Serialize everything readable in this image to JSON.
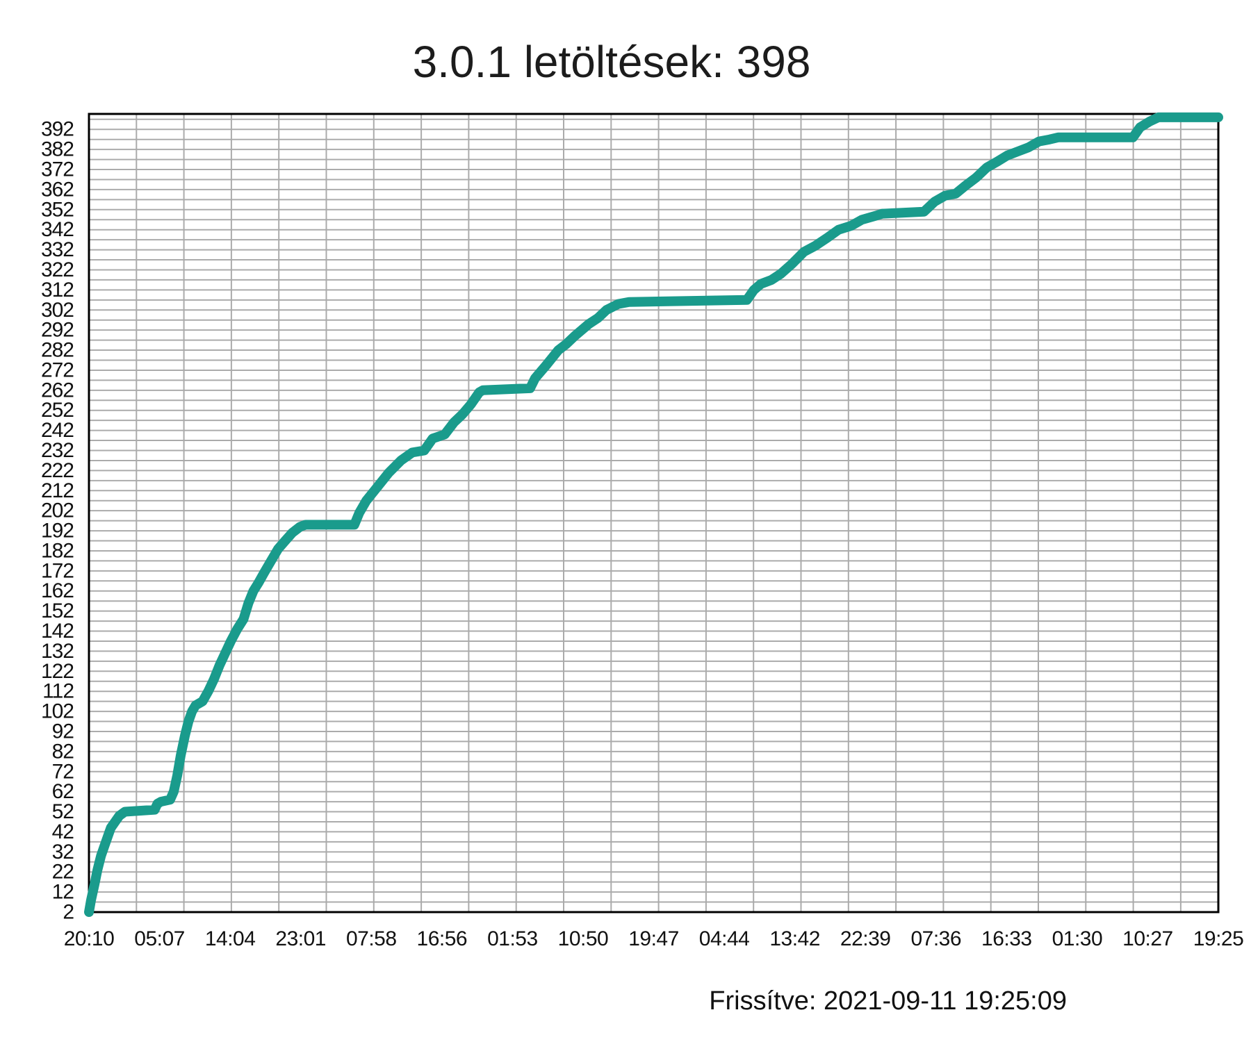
{
  "title": {
    "text": "3.0.1 letöltések: 398"
  },
  "footer": {
    "updated": "Frissítve: 2021-09-11 19:25:09"
  },
  "chart_data": {
    "type": "line",
    "title": "3.0.1 letöltések: 398",
    "series_name": "3.0.1 letöltések",
    "final_value": 398,
    "line_color": "#1a9b8c",
    "grid_color": "#ababab",
    "axis_color": "#000000",
    "background_color": "#ffffff",
    "grid_on": true,
    "legend": "none",
    "xlabel": "",
    "ylabel": "",
    "xlim": [
      0,
      16
    ],
    "ylim": [
      2,
      399.7
    ],
    "y_tick_min": 2,
    "y_tick_max": 392,
    "y_tick_step": 10,
    "y_minor_gridline_step": 5,
    "x_tick_labels": [
      "20:10",
      "05:07",
      "14:04",
      "23:01",
      "07:58",
      "16:56",
      "01:53",
      "10:50",
      "19:47",
      "04:44",
      "13:42",
      "22:39",
      "07:36",
      "16:33",
      "01:30",
      "10:27",
      "19:25"
    ],
    "points": [
      [
        0,
        2
      ],
      [
        0.03,
        8
      ],
      [
        0.08,
        16
      ],
      [
        0.12,
        23
      ],
      [
        0.17,
        30
      ],
      [
        0.22,
        35
      ],
      [
        0.27,
        40
      ],
      [
        0.31,
        44
      ],
      [
        0.37,
        47
      ],
      [
        0.43,
        50
      ],
      [
        0.51,
        52
      ],
      [
        0.93,
        53
      ],
      [
        0.97,
        56
      ],
      [
        1.02,
        57
      ],
      [
        1.15,
        58
      ],
      [
        1.2,
        62
      ],
      [
        1.25,
        70
      ],
      [
        1.3,
        80
      ],
      [
        1.36,
        90
      ],
      [
        1.41,
        97
      ],
      [
        1.46,
        102
      ],
      [
        1.51,
        105
      ],
      [
        1.61,
        107
      ],
      [
        1.69,
        112
      ],
      [
        1.77,
        118
      ],
      [
        1.85,
        125
      ],
      [
        1.93,
        131
      ],
      [
        2.01,
        137
      ],
      [
        2.1,
        143
      ],
      [
        2.19,
        148
      ],
      [
        2.26,
        156
      ],
      [
        2.33,
        162
      ],
      [
        2.4,
        166
      ],
      [
        2.48,
        171
      ],
      [
        2.58,
        177
      ],
      [
        2.68,
        183
      ],
      [
        2.78,
        187
      ],
      [
        2.88,
        191
      ],
      [
        2.99,
        194
      ],
      [
        3.07,
        195
      ],
      [
        3.76,
        195
      ],
      [
        3.83,
        201
      ],
      [
        3.93,
        207
      ],
      [
        4.09,
        214
      ],
      [
        4.25,
        221
      ],
      [
        4.42,
        227
      ],
      [
        4.58,
        231
      ],
      [
        4.75,
        232
      ],
      [
        4.87,
        238
      ],
      [
        5.04,
        240
      ],
      [
        5.17,
        246
      ],
      [
        5.29,
        250
      ],
      [
        5.41,
        255
      ],
      [
        5.53,
        261
      ],
      [
        5.58,
        262
      ],
      [
        6.25,
        263
      ],
      [
        6.32,
        268
      ],
      [
        6.49,
        275
      ],
      [
        6.65,
        282
      ],
      [
        6.76,
        285
      ],
      [
        6.88,
        289
      ],
      [
        7.08,
        295
      ],
      [
        7.21,
        298
      ],
      [
        7.33,
        302
      ],
      [
        7.5,
        305
      ],
      [
        7.65,
        306
      ],
      [
        9.32,
        307
      ],
      [
        9.42,
        312
      ],
      [
        9.52,
        315
      ],
      [
        9.67,
        317
      ],
      [
        9.8,
        320
      ],
      [
        9.96,
        325
      ],
      [
        10.13,
        331
      ],
      [
        10.29,
        334
      ],
      [
        10.46,
        338
      ],
      [
        10.62,
        342
      ],
      [
        10.8,
        344
      ],
      [
        10.95,
        347
      ],
      [
        11.15,
        349
      ],
      [
        11.24,
        350
      ],
      [
        11.83,
        351
      ],
      [
        11.98,
        356
      ],
      [
        12.13,
        359
      ],
      [
        12.28,
        360
      ],
      [
        12.42,
        364
      ],
      [
        12.57,
        368
      ],
      [
        12.72,
        373
      ],
      [
        12.87,
        376
      ],
      [
        13.01,
        379
      ],
      [
        13.16,
        381
      ],
      [
        13.31,
        383
      ],
      [
        13.46,
        386
      ],
      [
        13.61,
        387
      ],
      [
        13.73,
        388
      ],
      [
        14.79,
        388
      ],
      [
        14.89,
        393
      ],
      [
        15.03,
        396
      ],
      [
        15.15,
        398
      ],
      [
        16,
        398
      ]
    ]
  }
}
